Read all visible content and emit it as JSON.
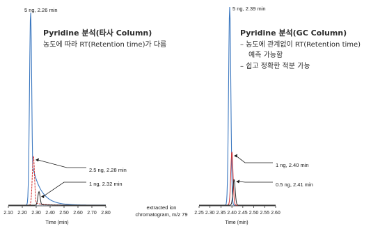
{
  "caption": {
    "line1": "extracted ion",
    "line2": "chromatogram, m/z 79"
  },
  "chart_data": [
    {
      "type": "line",
      "title": "Pyridine 분석(타사 Column)",
      "subtitle": "농도에 따라 RT(Retention time)가 다름",
      "xlabel": "Time (min)",
      "xlim": [
        2.1,
        2.8
      ],
      "ticks": [
        "2.10",
        "2.20",
        "2.30",
        "2.40",
        "2.50",
        "2.60",
        "2.70",
        "2.80"
      ],
      "series": [
        {
          "label": "5 ng, 2.26 min",
          "color": "#3c78c0",
          "rt": 2.26,
          "height": 1.0,
          "tail": 0.25
        },
        {
          "label": "2.5 ng, 2.28 min",
          "color": "#d23030",
          "rt": 2.28,
          "height": 0.255,
          "tail": 0.05
        },
        {
          "label": "1 ng, 2.32 min",
          "color": "#2a2a2a",
          "rt": 2.32,
          "height": 0.07,
          "tail": 0.04
        }
      ]
    },
    {
      "type": "line",
      "title": "Pyridine 분석(GC Column)",
      "bullets": [
        "– 농도에 관계없이 RT(Retention time)",
        "예측 가능함",
        "– 쉽고 정확한 적분 가능"
      ],
      "xlabel": "Time (min)",
      "xlim": [
        2.25,
        2.6
      ],
      "ticks": [
        "2.25",
        "2.30",
        "2.35",
        "2.40",
        "2.45",
        "2.50",
        "2.55",
        "2.60"
      ],
      "series": [
        {
          "label": "5 ng, 2.39 min",
          "color": "#3c78c0",
          "rt": 2.39,
          "height": 1.0
        },
        {
          "label": "1 ng, 2.40 min",
          "color": "#d23030",
          "rt": 2.4,
          "height": 0.27
        },
        {
          "label": "0.5 ng, 2.41 min",
          "color": "#2a2a2a",
          "rt": 2.41,
          "height": 0.13
        }
      ]
    }
  ]
}
